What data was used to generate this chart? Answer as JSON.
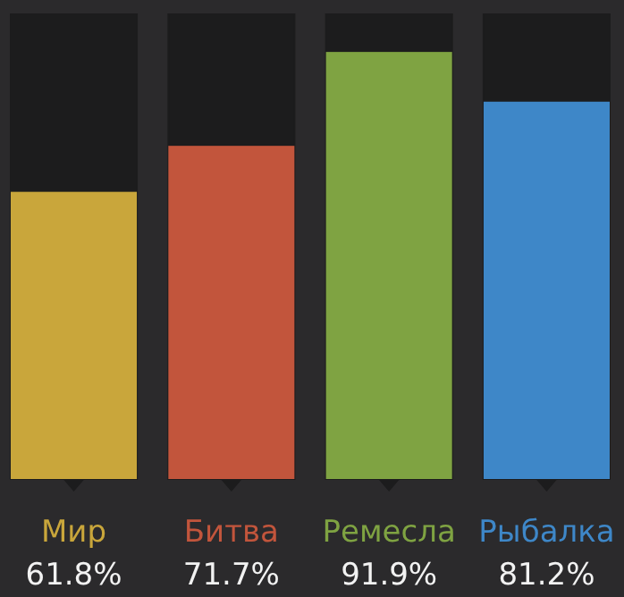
{
  "chart_data": {
    "type": "bar",
    "categories": [
      "Мир",
      "Битва",
      "Ремесла",
      "Рыбалка"
    ],
    "values": [
      61.8,
      71.7,
      91.9,
      81.2
    ],
    "colors": [
      "#c9a63b",
      "#c2553c",
      "#7fa342",
      "#3e87c8"
    ],
    "value_labels": [
      "61.8%",
      "71.7%",
      "91.9%",
      "81.2%"
    ],
    "ylim": [
      0,
      100
    ],
    "tick_labels": false,
    "grid": false
  }
}
